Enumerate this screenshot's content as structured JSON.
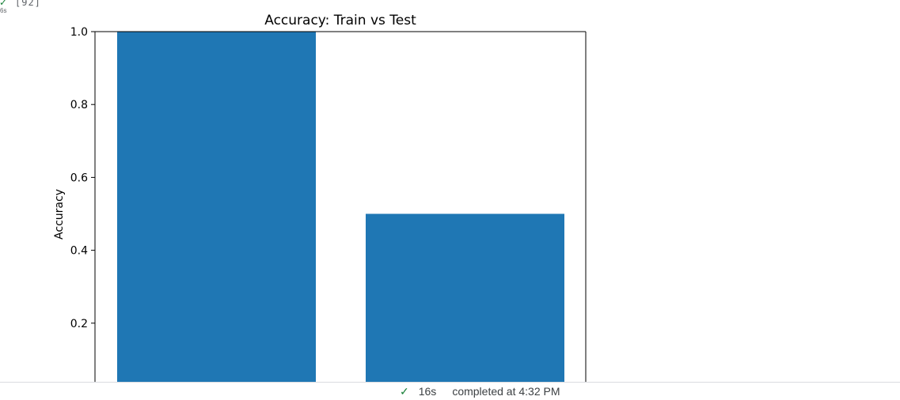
{
  "cell": {
    "execution_count": "[92]",
    "run_duration_short": "6s",
    "status_icon": "check-icon"
  },
  "status_bar": {
    "icon": "check-icon",
    "duration": "16s",
    "completed_text": "completed at 4:32 PM"
  },
  "colors": {
    "bar": "#1f77b4",
    "success": "#188038"
  },
  "chart_data": {
    "type": "bar",
    "title": "Accuracy: Train vs Test",
    "xlabel": "",
    "ylabel": "Accuracy",
    "categories": [
      "",
      ""
    ],
    "values": [
      1.0,
      0.5
    ],
    "ylim": [
      0,
      1.0
    ],
    "yticks": [
      0.2,
      0.4,
      0.6,
      0.8,
      1.0
    ],
    "ytick_labels": [
      "0.2",
      "0.4",
      "0.6",
      "0.8",
      "1.0"
    ],
    "grid": false,
    "legend": "none"
  }
}
